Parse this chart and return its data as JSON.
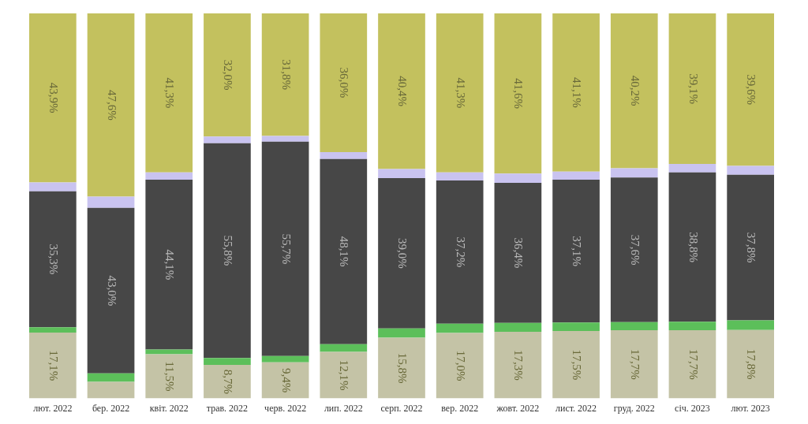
{
  "chart_data": {
    "type": "bar",
    "stacked": true,
    "legend": false,
    "grid": false,
    "tick_labels": "x",
    "categories": [
      "лют. 2022",
      "бер. 2022",
      "квіт. 2022",
      "трав. 2022",
      "черв. 2022",
      "лип. 2022",
      "серп. 2022",
      "вер. 2022",
      "жовт. 2022",
      "лист. 2022",
      "груд. 2022",
      "січ. 2023",
      "лют. 2023"
    ],
    "series": [
      {
        "color": "#c4c3a6",
        "values": [
          17.1,
          4.3,
          11.5,
          8.7,
          9.4,
          12.1,
          15.8,
          17.0,
          17.3,
          17.5,
          17.7,
          17.7,
          17.8
        ],
        "value_labels": [
          "17,1%",
          null,
          "11,5%",
          "8,7%",
          "9,4%",
          "12,1%",
          "15,8%",
          "17,0%",
          "17,3%",
          "17,5%",
          "17,7%",
          "17,7%",
          "17,8%"
        ]
      },
      {
        "color": "#5cbf5a",
        "values": [
          1.4,
          2.2,
          1.2,
          1.8,
          1.6,
          2.0,
          2.4,
          2.4,
          2.3,
          2.2,
          2.1,
          2.2,
          2.5
        ]
      },
      {
        "color": "#474747",
        "values": [
          35.3,
          43.0,
          44.1,
          55.8,
          55.7,
          48.1,
          39.0,
          37.2,
          36.4,
          37.1,
          37.6,
          38.8,
          37.8
        ],
        "value_labels": [
          "35,3%",
          "43,0%",
          "44,1%",
          "55,8%",
          "55,7%",
          "48,1%",
          "39,0%",
          "37,2%",
          "36,4%",
          "37,1%",
          "37,6%",
          "38,8%",
          "37,8%"
        ]
      },
      {
        "color": "#c9c3f0",
        "values": [
          2.3,
          2.9,
          1.9,
          1.7,
          1.5,
          1.8,
          2.4,
          2.1,
          2.4,
          2.1,
          2.4,
          2.2,
          2.3
        ]
      },
      {
        "color": "#c3c15e",
        "values": [
          43.9,
          47.6,
          41.3,
          32.0,
          31.8,
          36.0,
          40.4,
          41.3,
          41.6,
          41.1,
          40.2,
          39.1,
          39.6
        ],
        "value_labels": [
          "43,9%",
          "47,6%",
          "41,3%",
          "32,0%",
          "31,8%",
          "36,0%",
          "40,4%",
          "41,3%",
          "41,6%",
          "41,1%",
          "40,2%",
          "39,1%",
          "39,6%"
        ]
      }
    ]
  }
}
